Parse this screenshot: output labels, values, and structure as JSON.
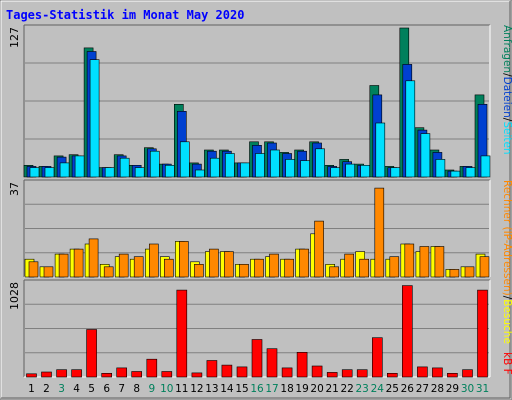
{
  "chart_data": {
    "title": "Tages-Statistik im Monat May 2020",
    "type": "bar",
    "categories": [
      "1",
      "2",
      "3",
      "4",
      "5",
      "6",
      "7",
      "8",
      "9",
      "10",
      "11",
      "12",
      "13",
      "14",
      "15",
      "16",
      "17",
      "18",
      "19",
      "20",
      "21",
      "22",
      "23",
      "24",
      "25",
      "26",
      "27",
      "28",
      "29",
      "30",
      "31"
    ],
    "weekend_categories": [
      "3",
      "9",
      "10",
      "16",
      "17",
      "23",
      "24",
      "30",
      "31"
    ],
    "panels": [
      {
        "y_max_label": "127",
        "ymax": 127,
        "series": [
          {
            "name": "Anfragen",
            "color": "#00805c",
            "values": [
              10,
              9,
              18,
              19,
              110,
              8,
              19,
              10,
              25,
              11,
              62,
              12,
              23,
              23,
              12,
              30,
              30,
              21,
              23,
              30,
              10,
              15,
              11,
              78,
              9,
              127,
              42,
              23,
              6,
              9,
              70
            ]
          },
          {
            "name": "Dateien",
            "color": "#0040d0",
            "values": [
              9,
              9,
              17,
              18,
              107,
              8,
              18,
              10,
              24,
              11,
              56,
              11,
              22,
              22,
              12,
              27,
              29,
              20,
              22,
              29,
              9,
              13,
              10,
              70,
              8,
              96,
              40,
              21,
              5,
              9,
              62
            ]
          },
          {
            "name": "Seiten",
            "color": "#00e0ff",
            "values": [
              8,
              8,
              12,
              18,
              100,
              8,
              16,
              8,
              22,
              10,
              30,
              6,
              16,
              20,
              12,
              20,
              23,
              15,
              14,
              24,
              8,
              11,
              10,
              46,
              8,
              82,
              37,
              15,
              5,
              8,
              18
            ]
          }
        ]
      },
      {
        "y_max_label": "37",
        "ymax": 37,
        "series": [
          {
            "name": "Besuche",
            "color": "#ffff00",
            "values": [
              7,
              4,
              9,
              11,
              13,
              5,
              8,
              7,
              11,
              8,
              14,
              6,
              10,
              10,
              5,
              7,
              8,
              7,
              11,
              17,
              5,
              7,
              10,
              7,
              7,
              13,
              10,
              12,
              3,
              4,
              9
            ]
          },
          {
            "name": "Rechner (IP-Adressen)",
            "color": "#ff8800",
            "values": [
              6,
              4,
              9,
              11,
              15,
              4,
              9,
              8,
              13,
              7,
              14,
              5,
              11,
              10,
              5,
              7,
              9,
              7,
              11,
              22,
              4,
              9,
              7,
              35,
              8,
              13,
              12,
              12,
              3,
              4,
              8
            ]
          }
        ]
      },
      {
        "y_max_label": "1028",
        "ymax": 1028,
        "series": [
          {
            "name": "kB F",
            "color": "#ff0000",
            "values": [
              35,
              55,
              80,
              80,
              520,
              40,
              100,
              60,
              195,
              60,
              950,
              45,
              180,
              130,
              110,
              410,
              310,
              100,
              270,
              120,
              50,
              80,
              80,
              430,
              40,
              1000,
              110,
              100,
              40,
              80,
              950
            ]
          }
        ]
      }
    ],
    "right_labels": {
      "top": [
        {
          "text": "Anfragen",
          "color": "#00805c"
        },
        {
          "text": "/",
          "color": "#000000"
        },
        {
          "text": "Dateien",
          "color": "#0040d0"
        },
        {
          "text": "/",
          "color": "#000000"
        },
        {
          "text": "Seiten",
          "color": "#00e0ff"
        }
      ],
      "middle": [
        {
          "text": "Rechner (IP-Adressen)",
          "color": "#ff8800"
        },
        {
          "text": "/",
          "color": "#000000"
        },
        {
          "text": "Besuche",
          "color": "#ffff00"
        }
      ],
      "bottom": [
        {
          "text": "kB F",
          "color": "#ff0000"
        }
      ]
    },
    "colors": {
      "background": "#c0c0c0",
      "gridline": "#808080",
      "weekday_label": "#000000",
      "weekend_label": "#00805c",
      "title": "#0000ff"
    }
  }
}
